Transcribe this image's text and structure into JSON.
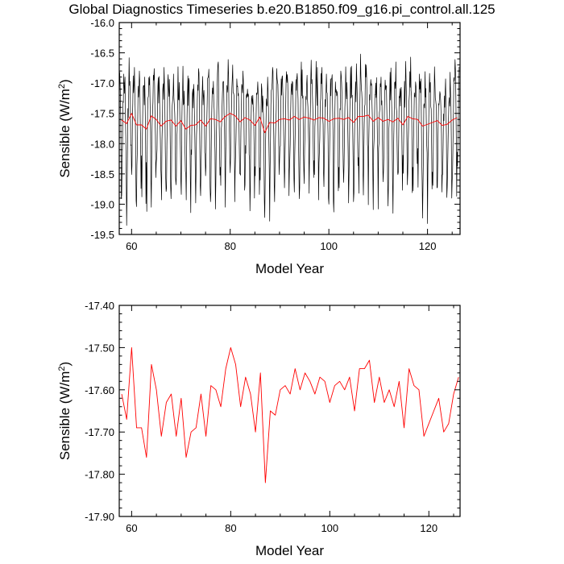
{
  "title": "Global Diagnostics Timeseries b.e20.B1850.f09_g16.pi_control.all.125",
  "chart_data": [
    {
      "type": "line",
      "xlabel": "Model Year",
      "ylabel": "Sensible (W/m",
      "ylabel_sup": "2",
      "ylabel_close": ")",
      "xlim": [
        57.5,
        126.6
      ],
      "ylim": [
        -19.5,
        -16.0
      ],
      "xticks": [
        60,
        80,
        100,
        120
      ],
      "yticks": [
        -16.0,
        -16.5,
        -17.0,
        -17.5,
        -18.0,
        -18.5,
        -19.0,
        -19.5
      ],
      "ytick_labels": [
        "-16.0",
        "-16.5",
        "-17.0",
        "-17.5",
        "-18.0",
        "-18.5",
        "-19.0",
        "-19.5"
      ],
      "grid": false,
      "series": [
        {
          "color": "#000000",
          "style": "monthly",
          "values": []
        },
        {
          "color": "#ff0000",
          "style": "annual",
          "x": [
            58,
            59,
            60,
            61,
            62,
            63,
            64,
            65,
            66,
            67,
            68,
            69,
            70,
            71,
            72,
            73,
            74,
            75,
            76,
            77,
            78,
            79,
            80,
            81,
            82,
            83,
            84,
            85,
            86,
            87,
            88,
            89,
            90,
            91,
            92,
            93,
            94,
            95,
            96,
            97,
            98,
            99,
            100,
            101,
            102,
            103,
            104,
            105,
            106,
            107,
            108,
            109,
            110,
            111,
            112,
            113,
            114,
            115,
            116,
            117,
            118,
            119,
            120,
            121,
            122,
            123,
            124,
            125,
            126
          ],
          "values": [
            -17.61,
            -17.67,
            -17.5,
            -17.69,
            -17.69,
            -17.76,
            -17.54,
            -17.6,
            -17.71,
            -17.63,
            -17.61,
            -17.71,
            -17.62,
            -17.76,
            -17.7,
            -17.69,
            -17.61,
            -17.71,
            -17.59,
            -17.6,
            -17.64,
            -17.55,
            -17.5,
            -17.54,
            -17.64,
            -17.57,
            -17.61,
            -17.7,
            -17.56,
            -17.82,
            -17.65,
            -17.66,
            -17.6,
            -17.59,
            -17.61,
            -17.55,
            -17.6,
            -17.56,
            -17.58,
            -17.61,
            -17.57,
            -17.58,
            -17.63,
            -17.59,
            -17.58,
            -17.6,
            -17.57,
            -17.65,
            -17.55,
            -17.55,
            -17.53,
            -17.63,
            -17.57,
            -17.63,
            -17.6,
            -17.64,
            -17.58,
            -17.69,
            -17.55,
            -17.59,
            -17.6,
            -17.71,
            -17.68,
            -17.65,
            -17.62,
            -17.7,
            -17.68,
            -17.61,
            -17.57
          ]
        }
      ]
    },
    {
      "type": "line",
      "xlabel": "Model Year",
      "ylabel": "Sensible (W/m",
      "ylabel_sup": "2",
      "ylabel_close": ")",
      "xlim": [
        57.5,
        126.3
      ],
      "ylim": [
        -17.9,
        -17.4
      ],
      "xticks": [
        60,
        80,
        100,
        120
      ],
      "yticks": [
        -17.4,
        -17.5,
        -17.6,
        -17.7,
        -17.8,
        -17.9
      ],
      "ytick_labels": [
        "-17.40",
        "-17.50",
        "-17.60",
        "-17.70",
        "-17.80",
        "-17.90"
      ],
      "grid": false,
      "series": [
        {
          "color": "#ff0000",
          "style": "annual",
          "x": [
            58,
            59,
            60,
            61,
            62,
            63,
            64,
            65,
            66,
            67,
            68,
            69,
            70,
            71,
            72,
            73,
            74,
            75,
            76,
            77,
            78,
            79,
            80,
            81,
            82,
            83,
            84,
            85,
            86,
            87,
            88,
            89,
            90,
            91,
            92,
            93,
            94,
            95,
            96,
            97,
            98,
            99,
            100,
            101,
            102,
            103,
            104,
            105,
            106,
            107,
            108,
            109,
            110,
            111,
            112,
            113,
            114,
            115,
            116,
            117,
            118,
            119,
            120,
            121,
            122,
            123,
            124,
            125,
            126
          ],
          "values": [
            -17.61,
            -17.67,
            -17.5,
            -17.69,
            -17.69,
            -17.76,
            -17.54,
            -17.6,
            -17.71,
            -17.63,
            -17.61,
            -17.71,
            -17.62,
            -17.76,
            -17.7,
            -17.69,
            -17.61,
            -17.71,
            -17.59,
            -17.6,
            -17.64,
            -17.55,
            -17.5,
            -17.54,
            -17.64,
            -17.57,
            -17.61,
            -17.7,
            -17.56,
            -17.82,
            -17.65,
            -17.66,
            -17.6,
            -17.59,
            -17.61,
            -17.55,
            -17.6,
            -17.56,
            -17.58,
            -17.61,
            -17.57,
            -17.58,
            -17.63,
            -17.59,
            -17.58,
            -17.6,
            -17.57,
            -17.65,
            -17.55,
            -17.55,
            -17.53,
            -17.63,
            -17.57,
            -17.63,
            -17.6,
            -17.64,
            -17.58,
            -17.69,
            -17.55,
            -17.59,
            -17.6,
            -17.71,
            -17.68,
            -17.65,
            -17.62,
            -17.7,
            -17.68,
            -17.61,
            -17.57
          ]
        }
      ]
    }
  ]
}
